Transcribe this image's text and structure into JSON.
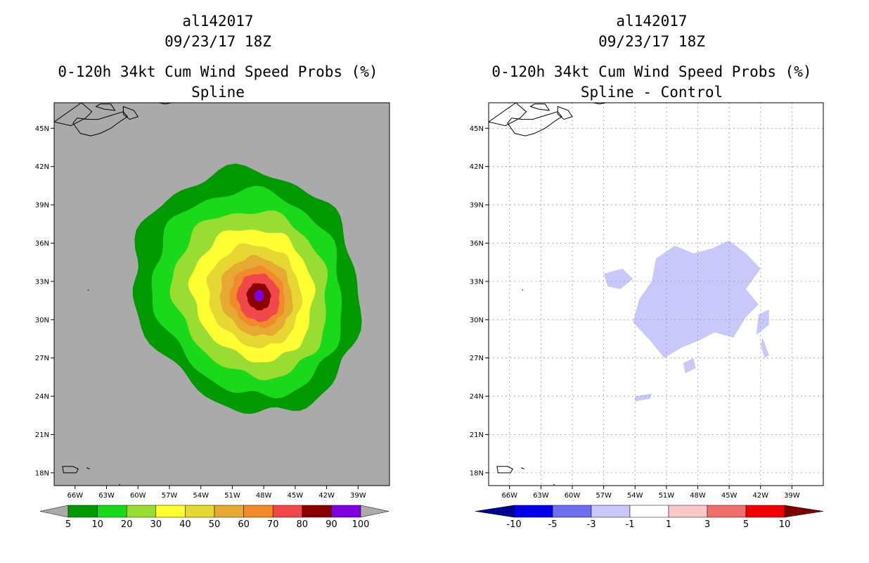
{
  "panels": [
    {
      "storm_id": "al142017",
      "datetime": "09/23/17 18Z",
      "product": "0-120h 34kt Cum Wind Speed Probs (%)",
      "subtitle": "Spline"
    },
    {
      "storm_id": "al142017",
      "datetime": "09/23/17 18Z",
      "product": "0-120h 34kt Cum Wind Speed Probs (%)",
      "subtitle": "Spline - Control"
    }
  ],
  "chart_data": [
    {
      "type": "heatmap",
      "title": "0-120h 34kt Cum Wind Speed Probs (%)",
      "subtitle": "Spline",
      "x_ticks": [
        "66W",
        "63W",
        "60W",
        "57W",
        "54W",
        "51W",
        "48W",
        "45W",
        "42W",
        "39W"
      ],
      "y_ticks": [
        "45N",
        "42N",
        "39N",
        "36N",
        "33N",
        "30N",
        "27N",
        "24N",
        "21N",
        "18N"
      ],
      "xlim_deg_w": [
        68,
        36
      ],
      "ylim_deg_n": [
        17,
        47
      ],
      "grid": false,
      "background": "#aaaaaa",
      "field_center": {
        "lon_w": 48.6,
        "lat_n": 31.6
      },
      "contours": [
        {
          "level": 5,
          "color": "#009a00",
          "radii_deg": [
            [
              12.4,
              9.6
            ],
            [
              10.2,
              8.4
            ]
          ]
        },
        {
          "level": 10,
          "color": "#1ad81a",
          "radii_deg": [
            [
              10.4,
              8.0
            ],
            [
              8.6,
              7.2
            ]
          ]
        },
        {
          "level": 20,
          "color": "#99dd33",
          "radii_deg": [
            [
              8.4,
              6.6
            ],
            [
              7.0,
              5.8
            ]
          ]
        },
        {
          "level": 30,
          "color": "#ffff33",
          "radii_deg": [
            [
              6.6,
              5.2
            ],
            [
              5.6,
              4.6
            ]
          ]
        },
        {
          "level": 40,
          "color": "#e6d733",
          "radii_deg": [
            [
              5.0,
              4.0
            ],
            [
              4.3,
              3.6
            ]
          ]
        },
        {
          "level": 50,
          "color": "#e6aa33",
          "radii_deg": [
            [
              3.8,
              3.2
            ],
            [
              3.3,
              2.8
            ]
          ]
        },
        {
          "level": 60,
          "color": "#f08a2a",
          "radii_deg": [
            [
              2.8,
              2.5
            ],
            [
              2.5,
              2.2
            ]
          ]
        },
        {
          "level": 70,
          "color": "#f0484a",
          "radii_deg": [
            [
              2.1,
              2.0
            ],
            [
              1.9,
              1.8
            ]
          ]
        },
        {
          "level": 80,
          "color": "#8a0000",
          "radii_deg": [
            [
              1.2,
              1.1
            ],
            [
              1.1,
              1.0
            ]
          ]
        },
        {
          "level": 90,
          "color": "#8000e0",
          "radii_deg": [
            [
              0.5,
              0.4
            ],
            [
              0.5,
              0.4
            ]
          ]
        }
      ],
      "colorbar": {
        "labels": [
          "5",
          "10",
          "20",
          "30",
          "40",
          "50",
          "60",
          "70",
          "80",
          "90",
          "100"
        ],
        "colors": [
          "#009a00",
          "#1ad81a",
          "#99dd33",
          "#ffff33",
          "#e6d733",
          "#e6aa33",
          "#f08a2a",
          "#f0484a",
          "#8a0000",
          "#8000e0"
        ],
        "extend_color": "#aaaaaa"
      }
    },
    {
      "type": "heatmap",
      "title": "0-120h 34kt Cum Wind Speed Probs (%)",
      "subtitle": "Spline - Control",
      "x_ticks": [
        "66W",
        "63W",
        "60W",
        "57W",
        "54W",
        "51W",
        "48W",
        "45W",
        "42W",
        "39W"
      ],
      "y_ticks": [
        "45N",
        "42N",
        "39N",
        "36N",
        "33N",
        "30N",
        "27N",
        "24N",
        "21N",
        "18N"
      ],
      "xlim_deg_w": [
        68,
        36
      ],
      "ylim_deg_n": [
        17,
        47
      ],
      "grid": true,
      "background": "#ffffff",
      "difference_regions": [
        {
          "value": -2,
          "color": "#c8c8fa",
          "lonlat": [
            [
              52.0,
              34.8
            ],
            [
              50.2,
              35.8
            ],
            [
              48.4,
              35.2
            ],
            [
              46.6,
              35.6
            ],
            [
              45.0,
              36.2
            ],
            [
              43.4,
              35.2
            ],
            [
              42.0,
              34.0
            ],
            [
              43.4,
              32.4
            ],
            [
              42.2,
              31.2
            ],
            [
              43.4,
              30.2
            ],
            [
              44.6,
              28.6
            ],
            [
              46.4,
              29.0
            ],
            [
              47.8,
              28.4
            ],
            [
              49.6,
              27.8
            ],
            [
              51.2,
              27.0
            ],
            [
              52.6,
              28.4
            ],
            [
              54.2,
              29.8
            ],
            [
              53.6,
              31.6
            ],
            [
              52.4,
              33.0
            ]
          ]
        },
        {
          "value": -2,
          "color": "#c8c8fa",
          "lonlat": [
            [
              57.0,
              33.6
            ],
            [
              55.2,
              34.0
            ],
            [
              54.2,
              33.2
            ],
            [
              55.4,
              32.4
            ],
            [
              56.6,
              32.6
            ]
          ]
        },
        {
          "value": -2,
          "color": "#c8c8fa",
          "lonlat": [
            [
              42.2,
              30.4
            ],
            [
              41.2,
              30.8
            ],
            [
              41.2,
              29.6
            ],
            [
              42.4,
              28.8
            ]
          ]
        },
        {
          "value": -2,
          "color": "#c8c8fa",
          "lonlat": [
            [
              49.4,
              26.6
            ],
            [
              48.4,
              27.0
            ],
            [
              48.2,
              26.2
            ],
            [
              49.2,
              25.8
            ]
          ]
        },
        {
          "value": -2,
          "color": "#c8c8fa",
          "lonlat": [
            [
              54.0,
              24.0
            ],
            [
              52.4,
              24.2
            ],
            [
              52.6,
              23.8
            ],
            [
              54.0,
              23.6
            ]
          ]
        },
        {
          "value": -2,
          "color": "#c8c8fa",
          "lonlat": [
            [
              41.8,
              28.6
            ],
            [
              41.2,
              27.2
            ],
            [
              41.6,
              27.0
            ],
            [
              42.0,
              28.0
            ]
          ]
        }
      ],
      "colorbar": {
        "labels": [
          "-10",
          "-5",
          "-3",
          "-1",
          "1",
          "3",
          "5",
          "10"
        ],
        "colors": [
          "#0000e6",
          "#6e6ef0",
          "#c8c8fa",
          "#ffffff",
          "#fac8c8",
          "#f06e6e",
          "#f00000"
        ],
        "extend_low_color": "#000090",
        "extend_high_color": "#7a0000"
      }
    }
  ]
}
